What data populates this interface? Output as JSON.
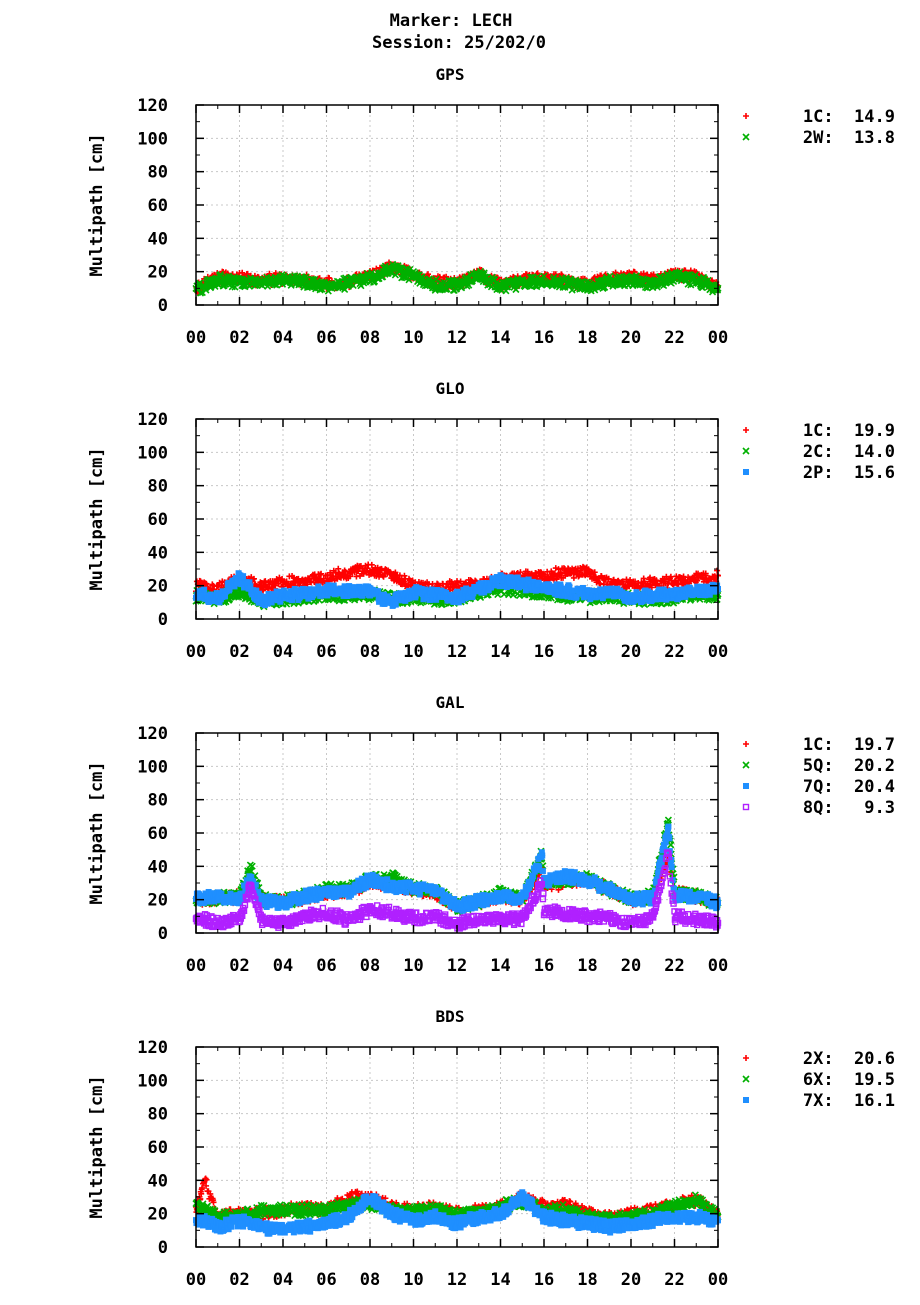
{
  "header": {
    "line1": "Marker: LECH",
    "line2": "Session: 25/202/0"
  },
  "colors": {
    "red": "#ff0000",
    "green": "#00b000",
    "blue": "#1f8fff",
    "purple": "#b020ff",
    "grid": "#c8c8c8",
    "axis": "#000000"
  },
  "chart_data": [
    {
      "type": "scatter",
      "title": "GPS",
      "ylabel": "Multipath [cm]",
      "ylim": [
        0,
        120
      ],
      "yticks": [
        0,
        20,
        40,
        60,
        80,
        100,
        120
      ],
      "xlim": [
        0,
        24
      ],
      "xticks": [
        "00",
        "02",
        "04",
        "06",
        "08",
        "10",
        "12",
        "14",
        "16",
        "18",
        "20",
        "22",
        "00"
      ],
      "grid": true,
      "legend_position": "right",
      "series": [
        {
          "code": "1C",
          "value": "14.9",
          "marker": "+",
          "color": "#ff0000",
          "x": [
            0,
            1,
            2,
            3,
            4,
            5,
            6,
            7,
            8,
            9,
            10,
            11,
            12,
            13,
            14,
            15,
            16,
            17,
            18,
            19,
            20,
            21,
            22,
            23,
            24
          ],
          "y": [
            10,
            17,
            16,
            15,
            16,
            15,
            13,
            14,
            17,
            23,
            18,
            14,
            13,
            19,
            12,
            15,
            16,
            15,
            12,
            16,
            17,
            15,
            19,
            17,
            11
          ]
        },
        {
          "code": "2W",
          "value": "13.8",
          "marker": "x",
          "color": "#00b000",
          "x": [
            0,
            1,
            2,
            3,
            4,
            5,
            6,
            7,
            8,
            9,
            10,
            11,
            12,
            13,
            14,
            15,
            16,
            17,
            18,
            19,
            20,
            21,
            22,
            23,
            24
          ],
          "y": [
            9,
            15,
            14,
            13,
            15,
            14,
            11,
            13,
            16,
            22,
            17,
            12,
            12,
            18,
            11,
            13,
            14,
            13,
            11,
            14,
            15,
            13,
            17,
            15,
            10
          ]
        }
      ]
    },
    {
      "type": "scatter",
      "title": "GLO",
      "ylabel": "Multipath [cm]",
      "ylim": [
        0,
        120
      ],
      "yticks": [
        0,
        20,
        40,
        60,
        80,
        100,
        120
      ],
      "xlim": [
        0,
        24
      ],
      "xticks": [
        "00",
        "02",
        "04",
        "06",
        "08",
        "10",
        "12",
        "14",
        "16",
        "18",
        "20",
        "22",
        "00"
      ],
      "grid": true,
      "legend_position": "right",
      "series": [
        {
          "code": "1C",
          "value": "19.9",
          "marker": "+",
          "color": "#ff0000",
          "x": [
            0,
            1,
            2,
            3,
            4,
            5,
            6,
            7,
            8,
            9,
            10,
            11,
            12,
            13,
            14,
            15,
            16,
            17,
            18,
            19,
            20,
            21,
            22,
            23,
            24
          ],
          "y": [
            20,
            18,
            24,
            20,
            22,
            23,
            25,
            28,
            30,
            26,
            20,
            18,
            20,
            20,
            24,
            25,
            26,
            28,
            28,
            22,
            20,
            22,
            22,
            24,
            26
          ]
        },
        {
          "code": "2C",
          "value": "14.0",
          "marker": "x",
          "color": "#00b000",
          "x": [
            0,
            1,
            2,
            3,
            4,
            5,
            6,
            7,
            8,
            9,
            10,
            11,
            12,
            13,
            14,
            15,
            16,
            17,
            18,
            19,
            20,
            21,
            22,
            23,
            24
          ],
          "y": [
            14,
            12,
            16,
            10,
            12,
            13,
            14,
            14,
            15,
            12,
            13,
            12,
            12,
            15,
            18,
            17,
            16,
            14,
            13,
            14,
            12,
            12,
            13,
            14,
            15
          ]
        },
        {
          "code": "2P",
          "value": "15.6",
          "marker": "square",
          "color": "#1f8fff",
          "x": [
            0,
            1,
            2,
            3,
            4,
            5,
            6,
            7,
            8,
            9,
            10,
            11,
            12,
            13,
            14,
            15,
            16,
            17,
            18,
            19,
            20,
            21,
            22,
            23,
            24
          ],
          "y": [
            16,
            12,
            25,
            11,
            14,
            15,
            17,
            17,
            16,
            10,
            16,
            14,
            13,
            18,
            23,
            21,
            19,
            17,
            15,
            16,
            13,
            14,
            15,
            17,
            18
          ]
        }
      ]
    },
    {
      "type": "scatter",
      "title": "GAL",
      "ylabel": "Multipath [cm]",
      "ylim": [
        0,
        120
      ],
      "yticks": [
        0,
        20,
        40,
        60,
        80,
        100,
        120
      ],
      "xlim": [
        0,
        24
      ],
      "xticks": [
        "00",
        "02",
        "04",
        "06",
        "08",
        "10",
        "12",
        "14",
        "16",
        "18",
        "20",
        "22",
        "00"
      ],
      "grid": true,
      "legend_position": "right",
      "series": [
        {
          "code": "1C",
          "value": "19.7",
          "marker": "+",
          "color": "#ff0000",
          "x": [
            0,
            1,
            2,
            2.5,
            3,
            4,
            5,
            6,
            7,
            8,
            9,
            10,
            11,
            12,
            13,
            14,
            15,
            15.9,
            16,
            17,
            18,
            19,
            20,
            21,
            21.7,
            22,
            23,
            24
          ],
          "y": [
            20,
            20,
            22,
            32,
            20,
            19,
            21,
            24,
            25,
            30,
            30,
            26,
            24,
            16,
            18,
            22,
            20,
            38,
            28,
            30,
            32,
            26,
            20,
            21,
            45,
            24,
            22,
            18
          ]
        },
        {
          "code": "5Q",
          "value": "20.2",
          "marker": "x",
          "color": "#00b000",
          "x": [
            0,
            1,
            2,
            2.5,
            3,
            4,
            5,
            6,
            7,
            8,
            9,
            10,
            11,
            12,
            13,
            14,
            15,
            15.9,
            16,
            17,
            18,
            19,
            20,
            21,
            21.7,
            22,
            23,
            24
          ],
          "y": [
            20,
            21,
            22,
            40,
            20,
            19,
            22,
            26,
            26,
            32,
            33,
            27,
            25,
            16,
            19,
            24,
            21,
            47,
            30,
            32,
            33,
            26,
            21,
            22,
            68,
            25,
            22,
            18
          ]
        },
        {
          "code": "7Q",
          "value": "20.4",
          "marker": "square",
          "color": "#1f8fff",
          "x": [
            0,
            1,
            2,
            2.5,
            3,
            4,
            5,
            6,
            7,
            8,
            9,
            10,
            11,
            12,
            13,
            14,
            15,
            15.9,
            16,
            17,
            18,
            19,
            20,
            21,
            21.7,
            22,
            23,
            24
          ],
          "y": [
            21,
            22,
            20,
            33,
            19,
            18,
            22,
            24,
            25,
            32,
            28,
            27,
            25,
            16,
            19,
            22,
            20,
            46,
            30,
            34,
            32,
            26,
            20,
            21,
            63,
            22,
            22,
            18
          ]
        },
        {
          "code": "8Q",
          "value": "9.3",
          "marker": "open-square",
          "color": "#b020ff",
          "x": [
            0,
            1,
            2,
            2.5,
            3,
            4,
            5,
            6,
            7,
            8,
            9,
            10,
            11,
            12,
            13,
            14,
            15,
            15.9,
            16,
            17,
            18,
            19,
            20,
            21,
            21.7,
            22,
            23,
            24
          ],
          "y": [
            9,
            6,
            8,
            28,
            8,
            6,
            10,
            12,
            8,
            14,
            12,
            9,
            10,
            5,
            8,
            9,
            8,
            30,
            14,
            11,
            10,
            9,
            6,
            9,
            48,
            10,
            8,
            6
          ]
        }
      ]
    },
    {
      "type": "scatter",
      "title": "BDS",
      "ylabel": "Multipath [cm]",
      "ylim": [
        0,
        120
      ],
      "yticks": [
        0,
        20,
        40,
        60,
        80,
        100,
        120
      ],
      "xlim": [
        0,
        24
      ],
      "xticks": [
        "00",
        "02",
        "04",
        "06",
        "08",
        "10",
        "12",
        "14",
        "16",
        "18",
        "20",
        "22",
        "00"
      ],
      "grid": true,
      "legend_position": "right",
      "series": [
        {
          "code": "2X",
          "value": "20.6",
          "marker": "+",
          "color": "#ff0000",
          "x": [
            0,
            0.4,
            1,
            2,
            3,
            4,
            5,
            6,
            7,
            8,
            9,
            10,
            11,
            12,
            13,
            14,
            15,
            16,
            17,
            18,
            19,
            20,
            21,
            22,
            23,
            24
          ],
          "y": [
            22,
            40,
            18,
            20,
            20,
            22,
            24,
            22,
            30,
            30,
            24,
            22,
            24,
            20,
            22,
            24,
            30,
            25,
            26,
            20,
            18,
            20,
            22,
            26,
            28,
            20
          ]
        },
        {
          "code": "6X",
          "value": "19.5",
          "marker": "x",
          "color": "#00b000",
          "x": [
            0,
            0.4,
            1,
            2,
            3,
            4,
            5,
            6,
            7,
            8,
            9,
            10,
            11,
            12,
            13,
            14,
            15,
            16,
            17,
            18,
            19,
            20,
            21,
            22,
            23,
            24
          ],
          "y": [
            24,
            22,
            18,
            18,
            22,
            22,
            22,
            22,
            25,
            26,
            22,
            22,
            22,
            20,
            20,
            24,
            28,
            22,
            22,
            18,
            16,
            18,
            20,
            24,
            28,
            18
          ]
        },
        {
          "code": "7X",
          "value": "16.1",
          "marker": "square",
          "color": "#1f8fff",
          "x": [
            0,
            0.4,
            1,
            2,
            3,
            4,
            5,
            6,
            7,
            8,
            9,
            10,
            11,
            12,
            13,
            14,
            15,
            16,
            17,
            18,
            19,
            20,
            21,
            22,
            23,
            24
          ],
          "y": [
            14,
            16,
            12,
            16,
            12,
            10,
            12,
            14,
            18,
            30,
            20,
            16,
            18,
            14,
            18,
            20,
            30,
            18,
            16,
            14,
            12,
            14,
            16,
            18,
            18,
            16
          ]
        }
      ]
    }
  ]
}
